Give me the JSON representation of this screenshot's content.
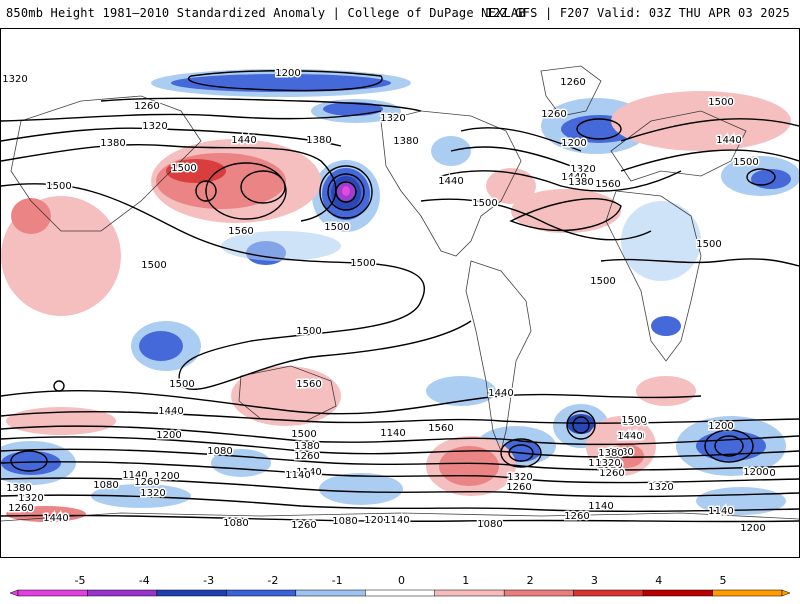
{
  "header": {
    "title": "850mb Height 1981–2010 Standardized Anomaly | College of DuPage NEXLAB",
    "valid": "12Z GFS | F207 Valid: 03Z THU APR 03 2025"
  },
  "colorbar": {
    "ticks": [
      "-5",
      "-4",
      "-3",
      "-2",
      "-1",
      "0",
      "1",
      "2",
      "3",
      "4",
      "5"
    ],
    "colors": [
      "#e040e0",
      "#9933cc",
      "#1f3fb0",
      "#3c62d8",
      "#9fc3f0",
      "#ffffff",
      "#f6bcbc",
      "#ea7e7e",
      "#d83434",
      "#b80000",
      "#ff9a00"
    ]
  },
  "contour_labels": [
    {
      "t": "1320"
    },
    {
      "t": "1200"
    },
    {
      "t": "1260"
    },
    {
      "t": "1500"
    },
    {
      "t": "1260"
    },
    {
      "t": "1320"
    },
    {
      "t": "1260"
    },
    {
      "t": "1320"
    },
    {
      "t": "1380"
    },
    {
      "t": "1440"
    },
    {
      "t": "1380"
    },
    {
      "t": "1380"
    },
    {
      "t": "1320"
    },
    {
      "t": "1200"
    },
    {
      "t": "1440"
    },
    {
      "t": "1500"
    },
    {
      "t": "1500"
    },
    {
      "t": "1440"
    },
    {
      "t": "1560"
    },
    {
      "t": "1560"
    },
    {
      "t": "1500"
    },
    {
      "t": "1440"
    },
    {
      "t": "1380"
    },
    {
      "t": "1500"
    },
    {
      "t": "1500"
    },
    {
      "t": "1500"
    },
    {
      "t": "1500"
    },
    {
      "t": "1500"
    },
    {
      "t": "1500"
    },
    {
      "t": "1560"
    },
    {
      "t": "1500"
    },
    {
      "t": "1500"
    },
    {
      "t": "1440"
    },
    {
      "t": "1560"
    },
    {
      "t": "1500"
    },
    {
      "t": "1440"
    },
    {
      "t": "1380"
    },
    {
      "t": "1320"
    },
    {
      "t": "1200"
    },
    {
      "t": "1500"
    },
    {
      "t": "1380"
    },
    {
      "t": "1260"
    },
    {
      "t": "1140"
    },
    {
      "t": "1080"
    },
    {
      "t": "1140"
    },
    {
      "t": "1200"
    },
    {
      "t": "1200"
    },
    {
      "t": "1140"
    },
    {
      "t": "1080"
    },
    {
      "t": "1260"
    },
    {
      "t": "1320"
    },
    {
      "t": "1440"
    },
    {
      "t": "1200"
    },
    {
      "t": "1080"
    },
    {
      "t": "1440"
    },
    {
      "t": "1380"
    },
    {
      "t": "1320"
    },
    {
      "t": "1260"
    },
    {
      "t": "1260"
    },
    {
      "t": "1320"
    },
    {
      "t": "1260"
    },
    {
      "t": "1200"
    },
    {
      "t": "1140"
    },
    {
      "t": "1320"
    },
    {
      "t": "1140"
    },
    {
      "t": "1080"
    },
    {
      "t": "1500"
    },
    {
      "t": "1440"
    },
    {
      "t": "1380"
    },
    {
      "t": "1320"
    },
    {
      "t": "1260"
    },
    {
      "t": "1200"
    },
    {
      "t": "1080"
    },
    {
      "t": "1260"
    },
    {
      "t": "1140"
    },
    {
      "t": "1080"
    },
    {
      "t": "1200"
    },
    {
      "t": "1320"
    },
    {
      "t": "1140"
    }
  ]
}
